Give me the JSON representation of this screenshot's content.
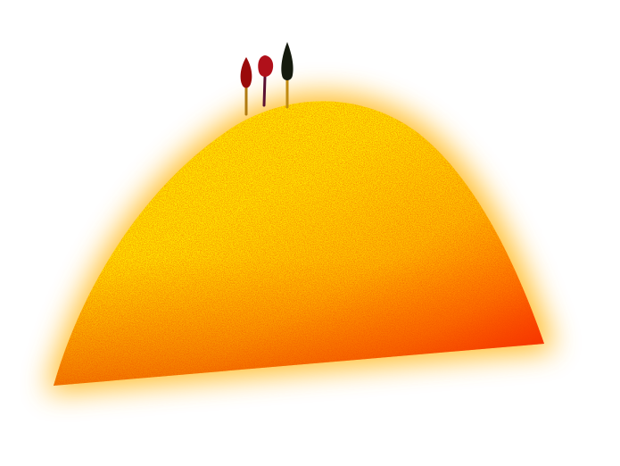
{
  "scene": {
    "background": "#ffffff",
    "hill": {
      "shape": "hill",
      "colors": {
        "light": "#fff200",
        "mid": "#ffc000",
        "deep": "#ff7a00",
        "shadow": "#ff1a00",
        "glow": "#ffb000"
      },
      "texture": "grainy"
    },
    "trees": [
      {
        "name": "tree-left",
        "shape": "teardrop",
        "color": "#9a0a0a",
        "trunk_color": "#b07a10"
      },
      {
        "name": "tree-middle",
        "shape": "teardrop",
        "color": "#b0101a",
        "trunk_color": "#5a1030"
      },
      {
        "name": "tree-right",
        "shape": "pointed-cypress",
        "color": "#151a0e",
        "trunk_color": "#c08a10"
      }
    ]
  }
}
